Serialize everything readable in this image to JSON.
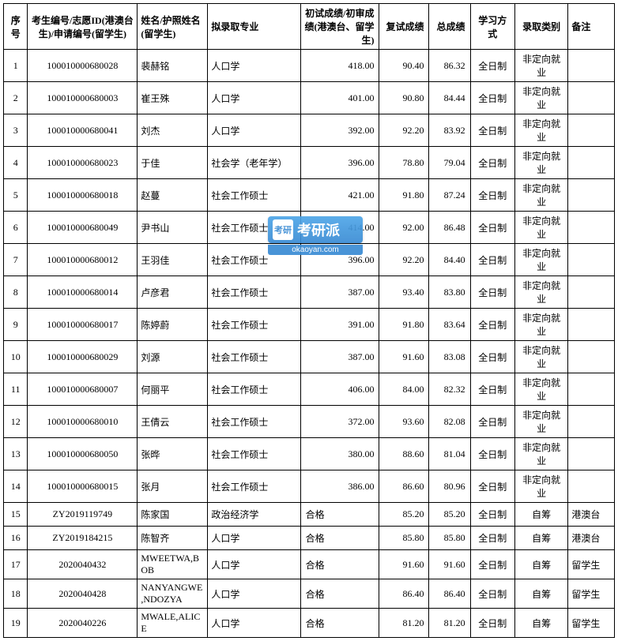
{
  "table": {
    "columns": [
      {
        "key": "seq",
        "label": "序号",
        "class": "col-seq"
      },
      {
        "key": "id",
        "label": "考生编号/志愿ID(港澳台生)/申请编号(留学生)",
        "class": "col-id"
      },
      {
        "key": "name",
        "label": "姓名/护照姓名(留学生)",
        "class": "col-name"
      },
      {
        "key": "major",
        "label": "拟录取专业",
        "class": "col-major"
      },
      {
        "key": "score1",
        "label": "初试成绩/初审成绩(港澳台、留学生)",
        "class": "col-score1"
      },
      {
        "key": "score2",
        "label": "复试成绩",
        "class": "col-score2"
      },
      {
        "key": "total",
        "label": "总成绩",
        "class": "col-total"
      },
      {
        "key": "study",
        "label": "学习方式",
        "class": "col-study"
      },
      {
        "key": "admit",
        "label": "录取类别",
        "class": "col-admit"
      },
      {
        "key": "note",
        "label": "备注",
        "class": "col-note"
      }
    ],
    "rows": [
      {
        "seq": "1",
        "id": "100010000680028",
        "name": "裴赫铭",
        "major": "人口学",
        "score1": "418.00",
        "score2": "90.40",
        "total": "86.32",
        "study": "全日制",
        "admit": "非定向就业",
        "note": ""
      },
      {
        "seq": "2",
        "id": "100010000680003",
        "name": "崔王殊",
        "major": "人口学",
        "score1": "401.00",
        "score2": "90.80",
        "total": "84.44",
        "study": "全日制",
        "admit": "非定向就业",
        "note": ""
      },
      {
        "seq": "3",
        "id": "100010000680041",
        "name": "刘杰",
        "major": "人口学",
        "score1": "392.00",
        "score2": "92.20",
        "total": "83.92",
        "study": "全日制",
        "admit": "非定向就业",
        "note": ""
      },
      {
        "seq": "4",
        "id": "100010000680023",
        "name": "于佳",
        "major": "社会学（老年学）",
        "score1": "396.00",
        "score2": "78.80",
        "total": "79.04",
        "study": "全日制",
        "admit": "非定向就业",
        "note": ""
      },
      {
        "seq": "5",
        "id": "100010000680018",
        "name": "赵蔓",
        "major": "社会工作硕士",
        "score1": "421.00",
        "score2": "91.80",
        "total": "87.24",
        "study": "全日制",
        "admit": "非定向就业",
        "note": ""
      },
      {
        "seq": "6",
        "id": "100010000680049",
        "name": "尹书山",
        "major": "社会工作硕士",
        "score1": "414.00",
        "score2": "92.00",
        "total": "86.48",
        "study": "全日制",
        "admit": "非定向就业",
        "note": ""
      },
      {
        "seq": "7",
        "id": "100010000680012",
        "name": "王羽佳",
        "major": "社会工作硕士",
        "score1": "396.00",
        "score2": "92.20",
        "total": "84.40",
        "study": "全日制",
        "admit": "非定向就业",
        "note": ""
      },
      {
        "seq": "8",
        "id": "100010000680014",
        "name": "卢彦君",
        "major": "社会工作硕士",
        "score1": "387.00",
        "score2": "93.40",
        "total": "83.80",
        "study": "全日制",
        "admit": "非定向就业",
        "note": ""
      },
      {
        "seq": "9",
        "id": "100010000680017",
        "name": "陈婷蔚",
        "major": "社会工作硕士",
        "score1": "391.00",
        "score2": "91.80",
        "total": "83.64",
        "study": "全日制",
        "admit": "非定向就业",
        "note": ""
      },
      {
        "seq": "10",
        "id": "100010000680029",
        "name": "刘源",
        "major": "社会工作硕士",
        "score1": "387.00",
        "score2": "91.60",
        "total": "83.08",
        "study": "全日制",
        "admit": "非定向就业",
        "note": ""
      },
      {
        "seq": "11",
        "id": "100010000680007",
        "name": "何丽平",
        "major": "社会工作硕士",
        "score1": "406.00",
        "score2": "84.00",
        "total": "82.32",
        "study": "全日制",
        "admit": "非定向就业",
        "note": ""
      },
      {
        "seq": "12",
        "id": "100010000680010",
        "name": "王倩云",
        "major": "社会工作硕士",
        "score1": "372.00",
        "score2": "93.60",
        "total": "82.08",
        "study": "全日制",
        "admit": "非定向就业",
        "note": ""
      },
      {
        "seq": "13",
        "id": "100010000680050",
        "name": "张晔",
        "major": "社会工作硕士",
        "score1": "380.00",
        "score2": "88.60",
        "total": "81.04",
        "study": "全日制",
        "admit": "非定向就业",
        "note": ""
      },
      {
        "seq": "14",
        "id": "100010000680015",
        "name": "张月",
        "major": "社会工作硕士",
        "score1": "386.00",
        "score2": "86.60",
        "total": "80.96",
        "study": "全日制",
        "admit": "非定向就业",
        "note": ""
      },
      {
        "seq": "15",
        "id": "ZY2019119749",
        "name": "陈家国",
        "major": "政治经济学",
        "score1": "合格",
        "score2": "85.20",
        "total": "85.20",
        "study": "全日制",
        "admit": "自筹",
        "note": "港澳台",
        "pass": true
      },
      {
        "seq": "16",
        "id": "ZY2019184215",
        "name": "陈智齐",
        "major": "人口学",
        "score1": "合格",
        "score2": "85.80",
        "total": "85.80",
        "study": "全日制",
        "admit": "自筹",
        "note": "港澳台",
        "pass": true
      },
      {
        "seq": "17",
        "id": "2020040432",
        "name": "MWEETWA,BOB",
        "major": "人口学",
        "score1": "合格",
        "score2": "91.60",
        "total": "91.60",
        "study": "全日制",
        "admit": "自筹",
        "note": "留学生",
        "pass": true
      },
      {
        "seq": "18",
        "id": "2020040428",
        "name": "NANYANGWE,NDOZYA",
        "major": "人口学",
        "score1": "合格",
        "score2": "86.40",
        "total": "86.40",
        "study": "全日制",
        "admit": "自筹",
        "note": "留学生",
        "pass": true
      },
      {
        "seq": "19",
        "id": "2020040226",
        "name": "MWALE,ALICE",
        "major": "人口学",
        "score1": "合格",
        "score2": "81.20",
        "total": "81.20",
        "study": "全日制",
        "admit": "自筹",
        "note": "留学生",
        "pass": true
      }
    ]
  },
  "watermark": {
    "icon_text": "考研",
    "main_text": "考研派",
    "url": "okaoyan.com"
  }
}
